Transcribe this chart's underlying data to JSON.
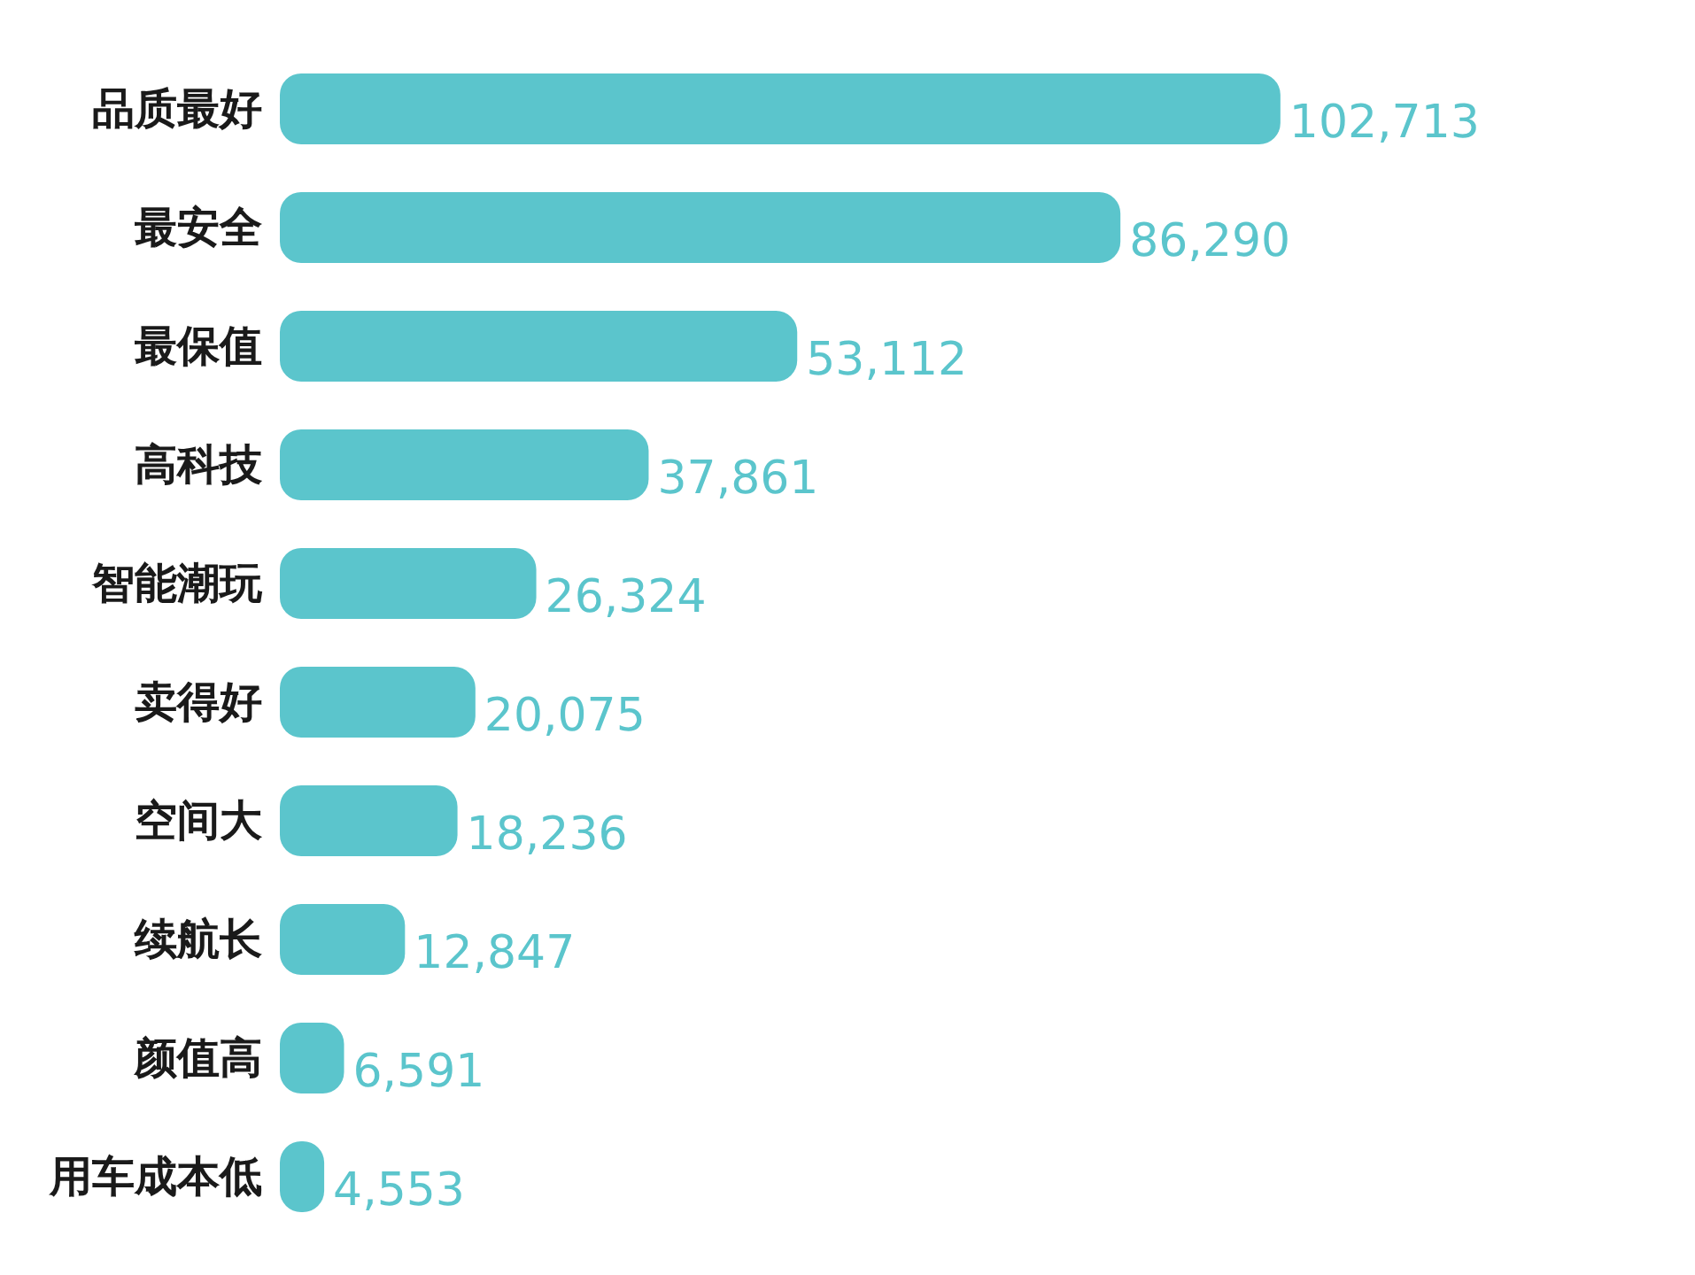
{
  "chart_data": {
    "type": "bar",
    "orientation": "horizontal",
    "categories": [
      "品质最好",
      "最安全",
      "最保值",
      "高科技",
      "智能潮玩",
      "卖得好",
      "空间大",
      "续航长",
      "颜值高",
      "用车成本低"
    ],
    "values": [
      102713,
      86290,
      53112,
      37861,
      26324,
      20075,
      18236,
      12847,
      6591,
      4553
    ],
    "value_labels": [
      "102,713",
      "86,290",
      "53,112",
      "37,861",
      "26,324",
      "20,075",
      "18,236",
      "12,847",
      "6,591",
      "4,553"
    ],
    "color": "#5bc5cc"
  }
}
